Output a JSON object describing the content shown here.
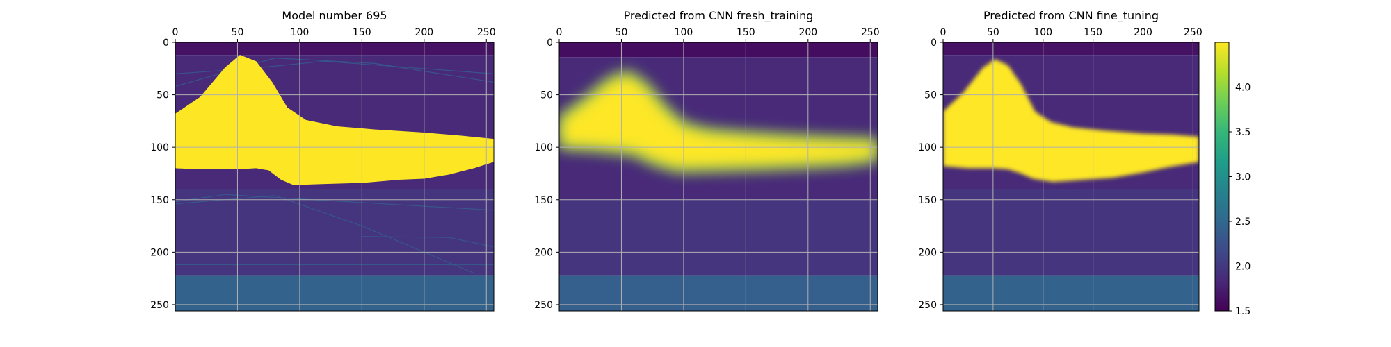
{
  "chart_data": [
    {
      "type": "heatmap",
      "title": "Model number 695",
      "x_ticks": [
        0,
        50,
        100,
        150,
        200,
        250
      ],
      "y_ticks": [
        0,
        50,
        100,
        150,
        200,
        250
      ],
      "xlim": [
        0,
        256
      ],
      "ylim": [
        256,
        0
      ],
      "grid": true,
      "x_axis_position": "top",
      "colormap": "viridis",
      "style": "sharp",
      "salt_body": {
        "top_edge": [
          [
            0,
            68
          ],
          [
            20,
            52
          ],
          [
            40,
            24
          ],
          [
            52,
            12
          ],
          [
            65,
            18
          ],
          [
            78,
            38
          ],
          [
            90,
            62
          ],
          [
            105,
            74
          ],
          [
            130,
            80
          ],
          [
            160,
            83
          ],
          [
            200,
            86
          ],
          [
            230,
            89
          ],
          [
            256,
            92
          ]
        ],
        "bottom_edge": [
          [
            0,
            120
          ],
          [
            20,
            121
          ],
          [
            50,
            121
          ],
          [
            65,
            120
          ],
          [
            75,
            122
          ],
          [
            85,
            131
          ],
          [
            95,
            136
          ],
          [
            120,
            135
          ],
          [
            150,
            134
          ],
          [
            180,
            131
          ],
          [
            200,
            130
          ],
          [
            220,
            126
          ],
          [
            240,
            120
          ],
          [
            256,
            114
          ]
        ]
      },
      "background_layers": [
        {
          "from": 0,
          "to": 12,
          "value": 1.65
        },
        {
          "from": 12,
          "to": 140,
          "value": 1.85
        },
        {
          "from": 140,
          "to": 222,
          "value": 1.95
        },
        {
          "from": 222,
          "to": 256,
          "value": 2.45
        }
      ]
    },
    {
      "type": "heatmap",
      "title": "Predicted from CNN fresh_training",
      "x_ticks": [
        0,
        50,
        100,
        150,
        200,
        250
      ],
      "y_ticks": [
        0,
        50,
        100,
        150,
        200,
        250
      ],
      "xlim": [
        0,
        256
      ],
      "ylim": [
        256,
        0
      ],
      "grid": true,
      "x_axis_position": "top",
      "colormap": "viridis",
      "style": "blurred",
      "salt_body": {
        "top_edge": [
          [
            0,
            72
          ],
          [
            20,
            55
          ],
          [
            40,
            35
          ],
          [
            55,
            28
          ],
          [
            70,
            40
          ],
          [
            85,
            62
          ],
          [
            100,
            78
          ],
          [
            120,
            84
          ],
          [
            150,
            87
          ],
          [
            190,
            90
          ],
          [
            230,
            92
          ],
          [
            256,
            93
          ]
        ],
        "bottom_edge": [
          [
            0,
            100
          ],
          [
            30,
            102
          ],
          [
            60,
            106
          ],
          [
            75,
            115
          ],
          [
            95,
            122
          ],
          [
            130,
            121
          ],
          [
            160,
            120
          ],
          [
            200,
            118
          ],
          [
            230,
            116
          ],
          [
            256,
            112
          ]
        ]
      },
      "background_layers": [
        {
          "from": 0,
          "to": 14,
          "value": 1.6
        },
        {
          "from": 14,
          "to": 150,
          "value": 1.85
        },
        {
          "from": 150,
          "to": 222,
          "value": 1.95
        },
        {
          "from": 222,
          "to": 256,
          "value": 2.4
        }
      ]
    },
    {
      "type": "heatmap",
      "title": "Predicted from CNN fine_tuning",
      "x_ticks": [
        0,
        50,
        100,
        150,
        200,
        250
      ],
      "y_ticks": [
        0,
        50,
        100,
        150,
        200,
        250
      ],
      "xlim": [
        0,
        256
      ],
      "ylim": [
        256,
        0
      ],
      "grid": true,
      "x_axis_position": "top",
      "colormap": "viridis",
      "style": "smooth",
      "salt_body": {
        "top_edge": [
          [
            0,
            66
          ],
          [
            20,
            48
          ],
          [
            40,
            24
          ],
          [
            52,
            16
          ],
          [
            65,
            22
          ],
          [
            78,
            40
          ],
          [
            92,
            66
          ],
          [
            108,
            76
          ],
          [
            130,
            81
          ],
          [
            160,
            84
          ],
          [
            200,
            87
          ],
          [
            230,
            88
          ],
          [
            256,
            90
          ]
        ],
        "bottom_edge": [
          [
            0,
            118
          ],
          [
            25,
            120
          ],
          [
            50,
            120
          ],
          [
            65,
            121
          ],
          [
            78,
            125
          ],
          [
            90,
            130
          ],
          [
            110,
            133
          ],
          [
            140,
            131
          ],
          [
            170,
            129
          ],
          [
            200,
            124
          ],
          [
            225,
            119
          ],
          [
            256,
            114
          ]
        ]
      },
      "background_layers": [
        {
          "from": 0,
          "to": 12,
          "value": 1.65
        },
        {
          "from": 12,
          "to": 140,
          "value": 1.85
        },
        {
          "from": 140,
          "to": 222,
          "value": 1.95
        },
        {
          "from": 222,
          "to": 256,
          "value": 2.45
        }
      ]
    }
  ],
  "colorbar": {
    "min": 1.5,
    "max": 4.5,
    "ticks": [
      1.5,
      2.0,
      2.5,
      3.0,
      3.5,
      4.0
    ],
    "tick_labels": [
      "1.5",
      "2.0",
      "2.5",
      "3.0",
      "3.5",
      "4.0"
    ],
    "colormap": "viridis"
  },
  "colors": {
    "viridis": [
      "#440154",
      "#482878",
      "#3e4989",
      "#31688e",
      "#26828e",
      "#1f9e89",
      "#35b779",
      "#6ece58",
      "#b5de2b",
      "#fde725"
    ],
    "grid": "#b0b0b0"
  }
}
